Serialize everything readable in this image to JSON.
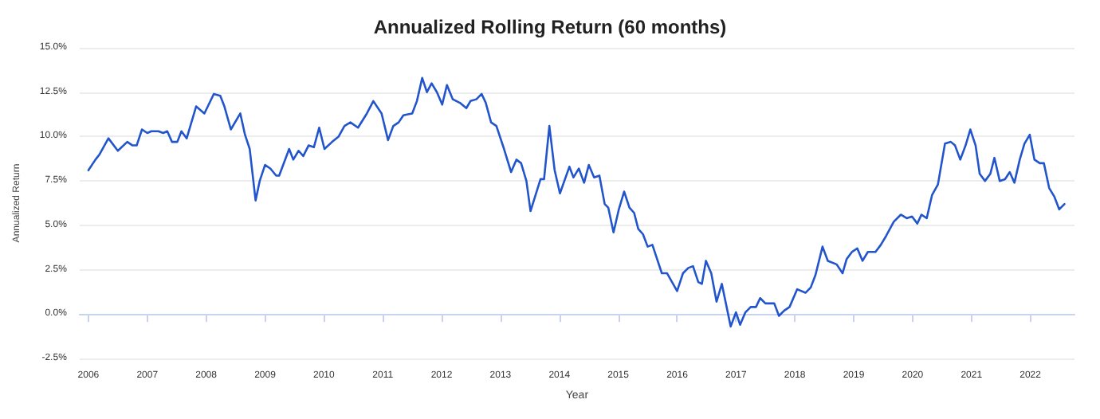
{
  "chart_data": {
    "type": "line",
    "title": "Annualized Rolling Return (60 months)",
    "xlabel": "Year",
    "ylabel": "Annualized Return",
    "grid": "y",
    "line_style": "solid",
    "xlim": [
      2005.85,
      2022.75
    ],
    "xticks": [
      2006,
      2007,
      2008,
      2009,
      2010,
      2011,
      2012,
      2013,
      2014,
      2015,
      2016,
      2017,
      2018,
      2019,
      2020,
      2021,
      2022
    ],
    "ylim": [
      -2.5,
      15
    ],
    "yticks": [
      {
        "value": -2.5,
        "label": "-2.5%"
      },
      {
        "value": 0,
        "label": "0.0%"
      },
      {
        "value": 2.5,
        "label": "2.5%"
      },
      {
        "value": 5,
        "label": "5.0%"
      },
      {
        "value": 7.5,
        "label": "7.5%"
      },
      {
        "value": 10,
        "label": "10.0%"
      },
      {
        "value": 12.5,
        "label": "12.5%"
      },
      {
        "value": 15,
        "label": "15.0%"
      }
    ],
    "series": [
      {
        "color": "#2255cc",
        "x": [
          2006.0,
          2006.12,
          2006.19,
          2006.34,
          2006.5,
          2006.66,
          2006.75,
          2006.82,
          2006.91,
          2007.0,
          2007.07,
          2007.19,
          2007.27,
          2007.34,
          2007.42,
          2007.51,
          2007.58,
          2007.67,
          2007.83,
          2007.97,
          2008.13,
          2008.24,
          2008.31,
          2008.42,
          2008.58,
          2008.66,
          2008.74,
          2008.84,
          2008.91,
          2009.0,
          2009.09,
          2009.19,
          2009.24,
          2009.41,
          2009.48,
          2009.57,
          2009.65,
          2009.74,
          2009.83,
          2009.92,
          2010.01,
          2010.14,
          2010.25,
          2010.35,
          2010.45,
          2010.58,
          2010.73,
          2010.84,
          2010.98,
          2011.09,
          2011.18,
          2011.27,
          2011.35,
          2011.5,
          2011.58,
          2011.67,
          2011.75,
          2011.83,
          2011.92,
          2012.01,
          2012.09,
          2012.19,
          2012.31,
          2012.42,
          2012.49,
          2012.59,
          2012.68,
          2012.75,
          2012.84,
          2012.93,
          2013.06,
          2013.18,
          2013.27,
          2013.35,
          2013.44,
          2013.51,
          2013.68,
          2013.74,
          2013.83,
          2013.92,
          2014.01,
          2014.17,
          2014.24,
          2014.33,
          2014.42,
          2014.5,
          2014.59,
          2014.68,
          2014.77,
          2014.83,
          2014.92,
          2015.01,
          2015.1,
          2015.19,
          2015.27,
          2015.34,
          2015.42,
          2015.5,
          2015.58,
          2015.74,
          2015.83,
          2016.0,
          2016.1,
          2016.19,
          2016.27,
          2016.36,
          2016.42,
          2016.49,
          2016.58,
          2016.67,
          2016.76,
          2016.91,
          2017.0,
          2017.07,
          2017.16,
          2017.25,
          2017.34,
          2017.41,
          2017.5,
          2017.65,
          2017.73,
          2017.82,
          2017.91,
          2018.04,
          2018.18,
          2018.27,
          2018.35,
          2018.47,
          2018.56,
          2018.71,
          2018.81,
          2018.88,
          2018.97,
          2019.06,
          2019.15,
          2019.24,
          2019.37,
          2019.46,
          2019.55,
          2019.68,
          2019.8,
          2019.9,
          2019.99,
          2020.08,
          2020.15,
          2020.24,
          2020.33,
          2020.43,
          2020.55,
          2020.65,
          2020.72,
          2020.81,
          2020.9,
          2020.98,
          2021.07,
          2021.14,
          2021.23,
          2021.32,
          2021.39,
          2021.48,
          2021.57,
          2021.65,
          2021.73,
          2021.82,
          2021.9,
          2021.99,
          2022.07,
          2022.16,
          2022.23,
          2022.32,
          2022.41,
          2022.49,
          2022.58
        ],
        "values": [
          8.1,
          8.7,
          9.0,
          9.9,
          9.2,
          9.7,
          9.5,
          9.5,
          10.4,
          10.2,
          10.3,
          10.3,
          10.2,
          10.3,
          9.7,
          9.7,
          10.3,
          9.9,
          11.7,
          11.3,
          12.4,
          12.3,
          11.7,
          10.4,
          11.3,
          10.1,
          9.3,
          6.4,
          7.5,
          8.4,
          8.2,
          7.8,
          7.8,
          9.3,
          8.7,
          9.2,
          8.9,
          9.5,
          9.4,
          10.5,
          9.3,
          9.7,
          10.0,
          10.6,
          10.8,
          10.5,
          11.3,
          12.0,
          11.3,
          9.8,
          10.6,
          10.8,
          11.2,
          11.3,
          12.0,
          13.3,
          12.5,
          13.0,
          12.5,
          11.8,
          12.9,
          12.1,
          11.9,
          11.6,
          12.0,
          12.1,
          12.4,
          11.9,
          10.8,
          10.6,
          9.3,
          8.0,
          8.7,
          8.5,
          7.5,
          5.8,
          7.6,
          7.6,
          10.6,
          8.1,
          6.8,
          8.3,
          7.7,
          8.2,
          7.4,
          8.4,
          7.7,
          7.8,
          6.2,
          6.0,
          4.6,
          5.9,
          6.9,
          6.0,
          5.7,
          4.8,
          4.5,
          3.8,
          3.9,
          2.3,
          2.3,
          1.3,
          2.3,
          2.6,
          2.7,
          1.8,
          1.7,
          3.0,
          2.3,
          0.7,
          1.7,
          -0.7,
          0.1,
          -0.6,
          0.1,
          0.4,
          0.4,
          0.9,
          0.6,
          0.6,
          -0.1,
          0.2,
          0.4,
          1.4,
          1.2,
          1.5,
          2.2,
          3.8,
          3.0,
          2.8,
          2.3,
          3.1,
          3.5,
          3.7,
          3.0,
          3.5,
          3.5,
          3.9,
          4.4,
          5.2,
          5.6,
          5.4,
          5.5,
          5.1,
          5.6,
          5.4,
          6.7,
          7.3,
          9.6,
          9.7,
          9.5,
          8.7,
          9.5,
          10.4,
          9.5,
          7.9,
          7.5,
          7.9,
          8.8,
          7.5,
          7.6,
          8.0,
          7.4,
          8.7,
          9.6,
          10.1,
          8.7,
          8.5,
          8.5,
          7.1,
          6.6,
          5.9,
          6.2
        ]
      }
    ]
  }
}
